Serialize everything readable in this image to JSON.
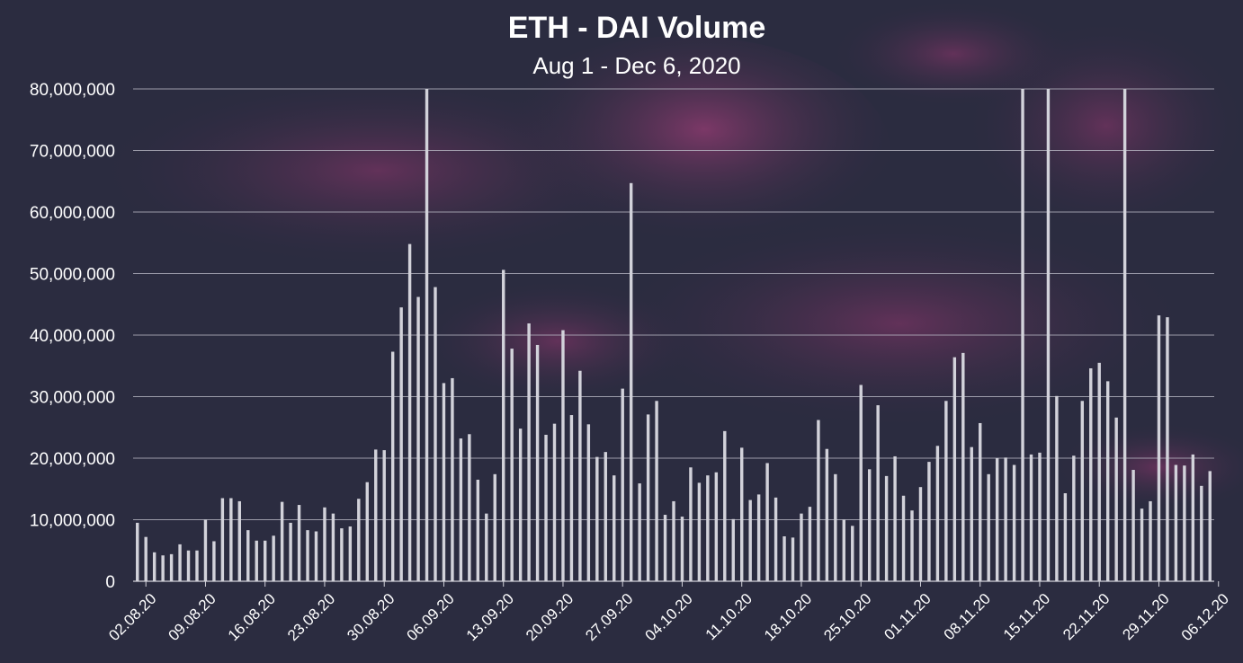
{
  "chart_data": {
    "type": "bar",
    "title": "ETH - DAI Volume",
    "subtitle": "Aug 1 - Dec 6, 2020",
    "xlabel": "",
    "ylabel": "",
    "ylim": [
      0,
      80000000
    ],
    "yticks": [
      "0",
      "10,000,000",
      "20,000,000",
      "30,000,000",
      "40,000,000",
      "50,000,000",
      "60,000,000",
      "70,000,000",
      "80,000,000"
    ],
    "xticks": [
      "02.08.20",
      "09.08.20",
      "16.08.20",
      "23.08.20",
      "30.08.20",
      "06.09.20",
      "13.09.20",
      "20.09.20",
      "27.09.20",
      "04.10.20",
      "11.10.20",
      "18.10.20",
      "25.10.20",
      "01.11.20",
      "08.11.20",
      "15.11.20",
      "22.11.20",
      "29.11.20",
      "06.12.20"
    ],
    "grid": true,
    "bar_color": "#d2d2da",
    "values": [
      9.5,
      7.2,
      4.7,
      4.2,
      4.4,
      6.0,
      5.0,
      5.0,
      10.0,
      6.5,
      13.5,
      13.5,
      13.0,
      8.3,
      6.6,
      6.6,
      7.4,
      12.9,
      9.5,
      12.4,
      8.3,
      8.1,
      12.0,
      11.0,
      8.6,
      8.9,
      13.4,
      16.1,
      21.4,
      21.3,
      37.3,
      44.5,
      54.8,
      46.2,
      80.0,
      47.8,
      32.2,
      33.0,
      23.2,
      23.9,
      16.5,
      11.0,
      17.4,
      50.6,
      37.8,
      24.8,
      41.9,
      38.4,
      23.8,
      25.6,
      40.8,
      27.0,
      34.2,
      25.5,
      20.2,
      21.0,
      17.2,
      31.3,
      64.7,
      15.9,
      27.1,
      29.3,
      10.8,
      13.0,
      10.5,
      18.5,
      16.0,
      17.2,
      17.7,
      24.4,
      10.1,
      21.7,
      13.2,
      14.1,
      19.2,
      13.6,
      7.3,
      7.1,
      11.0,
      12.1,
      26.2,
      21.5,
      17.4,
      10.0,
      9.0,
      31.9,
      18.2,
      28.6,
      17.1,
      20.3,
      13.9,
      11.5,
      15.3,
      19.4,
      22.0,
      29.3,
      36.4,
      37.1,
      21.8,
      25.7,
      17.4,
      20.0,
      20.1,
      18.9,
      80.0,
      20.6,
      20.9,
      80.0,
      30.1,
      14.3,
      20.4,
      29.3,
      34.6,
      35.5,
      32.5,
      26.6,
      80.0,
      18.1,
      11.8,
      13.0,
      43.2,
      42.9,
      18.9,
      18.8,
      20.6,
      15.5,
      17.9
    ],
    "value_unit_note": ""
  }
}
